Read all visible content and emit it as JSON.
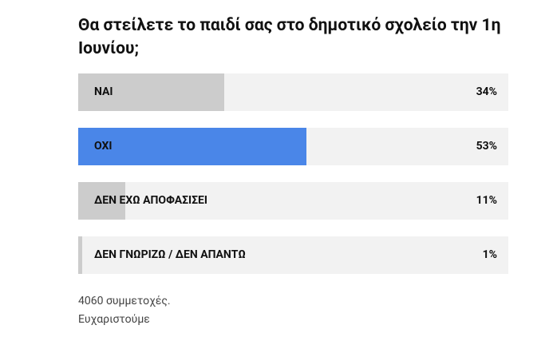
{
  "chart_data": {
    "type": "bar",
    "title": "Θα στείλετε το παιδί σας στο δημοτικό σχολείο την 1η Ιουνίου;",
    "categories": [
      "ΝΑΙ",
      "ΟΧΙ",
      "ΔΕΝ ΕΧΩ ΑΠΟΦΑΣΙΣΕΙ",
      "ΔΕΝ ΓΝΩΡΙΖΩ / ΔΕΝ ΑΠΑΝΤΩ"
    ],
    "values": [
      34,
      53,
      11,
      1
    ],
    "value_labels": [
      "34%",
      "53%",
      "11%",
      "1%"
    ],
    "colors": [
      "#cccccc",
      "#4a86e8",
      "#cccccc",
      "#cccccc"
    ],
    "xlim": [
      0,
      100
    ],
    "footer": [
      "4060 συμμετοχές.",
      "Ευχαριστούμε"
    ]
  }
}
